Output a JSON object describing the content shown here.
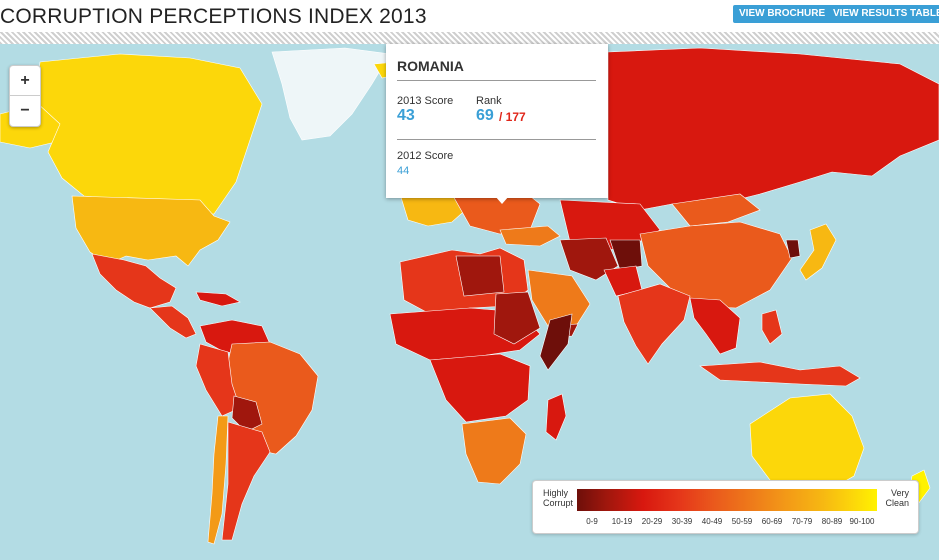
{
  "header": {
    "title": "CORRUPTION PERCEPTIONS INDEX 2013",
    "brochure_button": "VIEW BROCHURE",
    "results_button": "VIEW RESULTS TABLE"
  },
  "zoom": {
    "in_label": "+",
    "out_label": "−"
  },
  "popup": {
    "country": "ROMANIA",
    "score_2013_label": "2013 Score",
    "score_2013": "43",
    "rank_label": "Rank",
    "rank": "69",
    "rank_total": "/ 177",
    "score_2012_label": "2012 Score",
    "score_2012": "44"
  },
  "legend": {
    "low_label_line1": "Highly",
    "low_label_line2": "Corrupt",
    "high_label_line1": "Very",
    "high_label_line2": "Clean",
    "ranges": [
      "0-9",
      "10-19",
      "20-29",
      "30-39",
      "40-49",
      "50-59",
      "60-69",
      "70-79",
      "80-89",
      "90-100"
    ]
  },
  "colors": {
    "ocean": "#b3dce4",
    "button_blue": "#3a9fd6",
    "rank_red": "#e0261a",
    "score_0_9": "#6e0f0a",
    "score_10_19": "#a0170d",
    "score_20_29": "#d8180f",
    "score_30_39": "#e5361a",
    "score_40_49": "#ea5a1c",
    "score_50_59": "#ee7a1a",
    "score_60_69": "#f39a17",
    "score_70_79": "#f7b812",
    "score_80_89": "#fcd70a",
    "score_90_100": "#fff200",
    "no_data": "#eef6f8"
  }
}
